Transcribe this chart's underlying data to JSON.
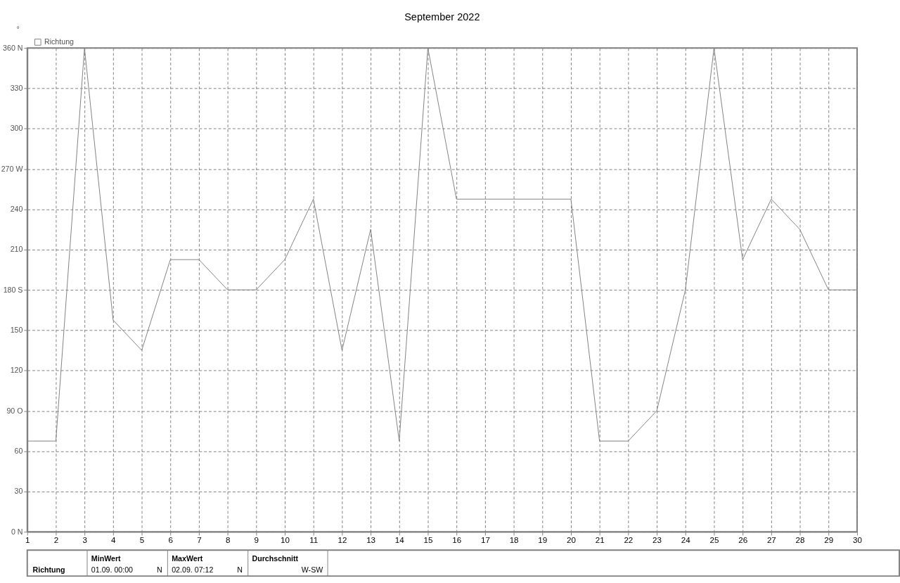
{
  "chart_data": {
    "type": "line",
    "title": "September 2022",
    "ylabel": "°",
    "x": [
      1,
      2,
      3,
      4,
      5,
      6,
      7,
      8,
      9,
      10,
      11,
      12,
      13,
      14,
      15,
      16,
      17,
      18,
      19,
      20,
      21,
      22,
      23,
      24,
      25,
      26,
      27,
      28,
      29,
      30
    ],
    "series": [
      {
        "name": "Richtung",
        "color": "#808080",
        "values": [
          67.5,
          67.5,
          360,
          157.5,
          135,
          202.5,
          202.5,
          180,
          180,
          202.5,
          247.5,
          135,
          225,
          67.5,
          360,
          247.5,
          247.5,
          247.5,
          247.5,
          247.5,
          67.5,
          67.5,
          90,
          180,
          360,
          202.5,
          247.5,
          225,
          180,
          180
        ]
      }
    ],
    "xlim": [
      1,
      30
    ],
    "xticks": [
      1,
      2,
      3,
      4,
      5,
      6,
      7,
      8,
      9,
      10,
      11,
      12,
      13,
      14,
      15,
      16,
      17,
      18,
      19,
      20,
      21,
      22,
      23,
      24,
      25,
      26,
      27,
      28,
      29,
      30
    ],
    "ylim": [
      0,
      360
    ],
    "yticks": [
      {
        "value": 0,
        "label": "0  N"
      },
      30,
      60,
      {
        "value": 90,
        "label": "90  O"
      },
      120,
      150,
      {
        "value": 180,
        "label": "180 S"
      },
      210,
      240,
      {
        "value": 270,
        "label": "270 W"
      },
      300,
      330,
      {
        "value": 360,
        "label": "360 N"
      }
    ],
    "grid": true,
    "legend": "top left",
    "marker": "none",
    "line_style": "solid",
    "annotations": [
      "Richtung",
      "MinWert",
      "01.09.  00:00",
      "N",
      "MaxWert",
      "02.09.  07:12",
      "N",
      "Durchschnitt",
      "W-SW"
    ]
  }
}
